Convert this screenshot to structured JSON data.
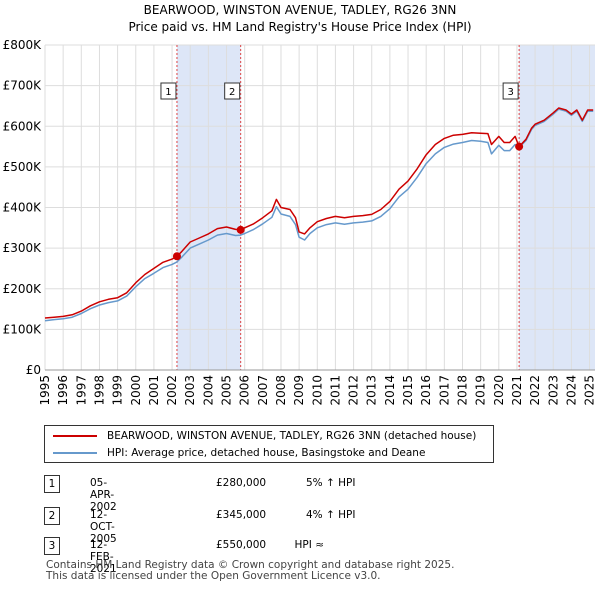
{
  "title": "BEARWOOD, WINSTON AVENUE, TADLEY, RG26 3NN",
  "subtitle": "Price paid vs. HM Land Registry's House Price Index (HPI)",
  "colors": {
    "property": "#cc0000",
    "hpi": "#6699cc",
    "band": "#dde6f7",
    "grid": "#dddddd"
  },
  "chart_data": {
    "type": "line",
    "title": "BEARWOOD, WINSTON AVENUE, TADLEY, RG26 3NN",
    "subtitle": "Price paid vs. HM Land Registry's House Price Index (HPI)",
    "xlim": [
      1995,
      2025.3
    ],
    "ylim": [
      0,
      800000
    ],
    "xticks": [
      "1995",
      "1996",
      "1997",
      "1998",
      "1999",
      "2000",
      "2001",
      "2002",
      "2003",
      "2004",
      "2005",
      "2006",
      "2007",
      "2008",
      "2009",
      "2010",
      "2011",
      "2012",
      "2013",
      "2014",
      "2015",
      "2016",
      "2017",
      "2018",
      "2019",
      "2020",
      "2021",
      "2022",
      "2023",
      "2024",
      "2025"
    ],
    "yticks": [
      {
        "value": 0,
        "label": "£0"
      },
      {
        "value": 100000,
        "label": "£100K"
      },
      {
        "value": 200000,
        "label": "£200K"
      },
      {
        "value": 300000,
        "label": "£300K"
      },
      {
        "value": 400000,
        "label": "£400K"
      },
      {
        "value": 500000,
        "label": "£500K"
      },
      {
        "value": 600000,
        "label": "£600K"
      },
      {
        "value": 700000,
        "label": "£700K"
      },
      {
        "value": 800000,
        "label": "£800K"
      }
    ],
    "bands": [
      [
        2002.27,
        2005.78
      ],
      [
        2021.12,
        2025.3
      ]
    ],
    "series": [
      {
        "name": "BEARWOOD, WINSTON AVENUE, TADLEY, RG26 3NN (detached house)",
        "color": "#cc0000",
        "x": [
          1995,
          1995.5,
          1996,
          1996.5,
          1997,
          1997.5,
          1998,
          1998.5,
          1999,
          1999.5,
          2000,
          2000.5,
          2001,
          2001.5,
          2002,
          2002.27,
          2002.5,
          2003,
          2003.5,
          2004,
          2004.5,
          2005,
          2005.5,
          2005.78,
          2006,
          2006.5,
          2007,
          2007.5,
          2007.75,
          2008,
          2008.5,
          2008.8,
          2009,
          2009.3,
          2009.6,
          2010,
          2010.5,
          2011,
          2011.5,
          2012,
          2012.5,
          2013,
          2013.5,
          2014,
          2014.5,
          2015,
          2015.5,
          2016,
          2016.5,
          2017,
          2017.5,
          2018,
          2018.5,
          2019,
          2019.4,
          2019.6,
          2019.9,
          2020,
          2020.3,
          2020.6,
          2020.9,
          2021.12,
          2021.5,
          2021.8,
          2022,
          2022.5,
          2023,
          2023.3,
          2023.7,
          2024,
          2024.3,
          2024.6,
          2024.9,
          2025.2
        ],
        "y": [
          128000,
          130000,
          132000,
          136000,
          145000,
          158000,
          168000,
          174000,
          178000,
          190000,
          215000,
          235000,
          250000,
          265000,
          273000,
          280000,
          290000,
          315000,
          325000,
          335000,
          348000,
          352000,
          346000,
          345000,
          350000,
          360000,
          375000,
          392000,
          420000,
          400000,
          395000,
          375000,
          340000,
          335000,
          350000,
          365000,
          373000,
          378000,
          375000,
          378000,
          380000,
          383000,
          395000,
          415000,
          445000,
          465000,
          495000,
          530000,
          555000,
          570000,
          578000,
          580000,
          584000,
          583000,
          582000,
          555000,
          570000,
          575000,
          560000,
          560000,
          575000,
          550000,
          568000,
          595000,
          605000,
          615000,
          633000,
          645000,
          640000,
          630000,
          640000,
          615000,
          640000,
          640000
        ]
      },
      {
        "name": "HPI: Average price, detached house, Basingstoke and Deane",
        "color": "#6699cc",
        "x": [
          1995,
          1995.5,
          1996,
          1996.5,
          1997,
          1997.5,
          1998,
          1998.5,
          1999,
          1999.5,
          2000,
          2000.5,
          2001,
          2001.5,
          2002,
          2002.27,
          2002.5,
          2003,
          2003.5,
          2004,
          2004.5,
          2005,
          2005.5,
          2005.78,
          2006,
          2006.5,
          2007,
          2007.5,
          2007.75,
          2008,
          2008.5,
          2008.8,
          2009,
          2009.3,
          2009.6,
          2010,
          2010.5,
          2011,
          2011.5,
          2012,
          2012.5,
          2013,
          2013.5,
          2014,
          2014.5,
          2015,
          2015.5,
          2016,
          2016.5,
          2017,
          2017.5,
          2018,
          2018.5,
          2019,
          2019.4,
          2019.6,
          2019.9,
          2020,
          2020.3,
          2020.6,
          2020.9,
          2021.12,
          2021.5,
          2021.8,
          2022,
          2022.5,
          2023,
          2023.3,
          2023.7,
          2024,
          2024.3,
          2024.6,
          2024.9,
          2025.2
        ],
        "y": [
          121000,
          124000,
          126000,
          130000,
          139000,
          151000,
          160000,
          166000,
          170000,
          182000,
          205000,
          225000,
          238000,
          252000,
          260000,
          266000,
          276000,
          300000,
          310000,
          320000,
          332000,
          336000,
          331000,
          332000,
          336000,
          346000,
          360000,
          376000,
          402000,
          384000,
          378000,
          358000,
          327000,
          320000,
          336000,
          350000,
          358000,
          362000,
          359000,
          362000,
          364000,
          367000,
          378000,
          397000,
          426000,
          445000,
          474000,
          508000,
          532000,
          548000,
          556000,
          560000,
          565000,
          563000,
          560000,
          532000,
          548000,
          553000,
          540000,
          540000,
          555000,
          548000,
          565000,
          592000,
          602000,
          612000,
          630000,
          642000,
          637000,
          627000,
          637000,
          612000,
          637000,
          637000
        ]
      }
    ],
    "sales": [
      {
        "label": "1",
        "x": 2002.27,
        "value": 280000
      },
      {
        "label": "2",
        "x": 2005.78,
        "value": 345000
      },
      {
        "label": "3",
        "x": 2021.12,
        "value": 550000
      }
    ]
  },
  "legend": {
    "property": "BEARWOOD, WINSTON AVENUE, TADLEY, RG26 3NN (detached house)",
    "hpi": "HPI: Average price, detached house, Basingstoke and Deane"
  },
  "transactions": [
    {
      "num": "1",
      "date": "05-APR-2002",
      "price": "£280,000",
      "hpi": "5% ↑ HPI"
    },
    {
      "num": "2",
      "date": "12-OCT-2005",
      "price": "£345,000",
      "hpi": "4% ↑ HPI"
    },
    {
      "num": "3",
      "date": "12-FEB-2021",
      "price": "£550,000",
      "hpi": "≈ HPI"
    }
  ],
  "footer": {
    "line1": "Contains HM Land Registry data © Crown copyright and database right 2025.",
    "line2": "This data is licensed under the Open Government Licence v3.0."
  }
}
